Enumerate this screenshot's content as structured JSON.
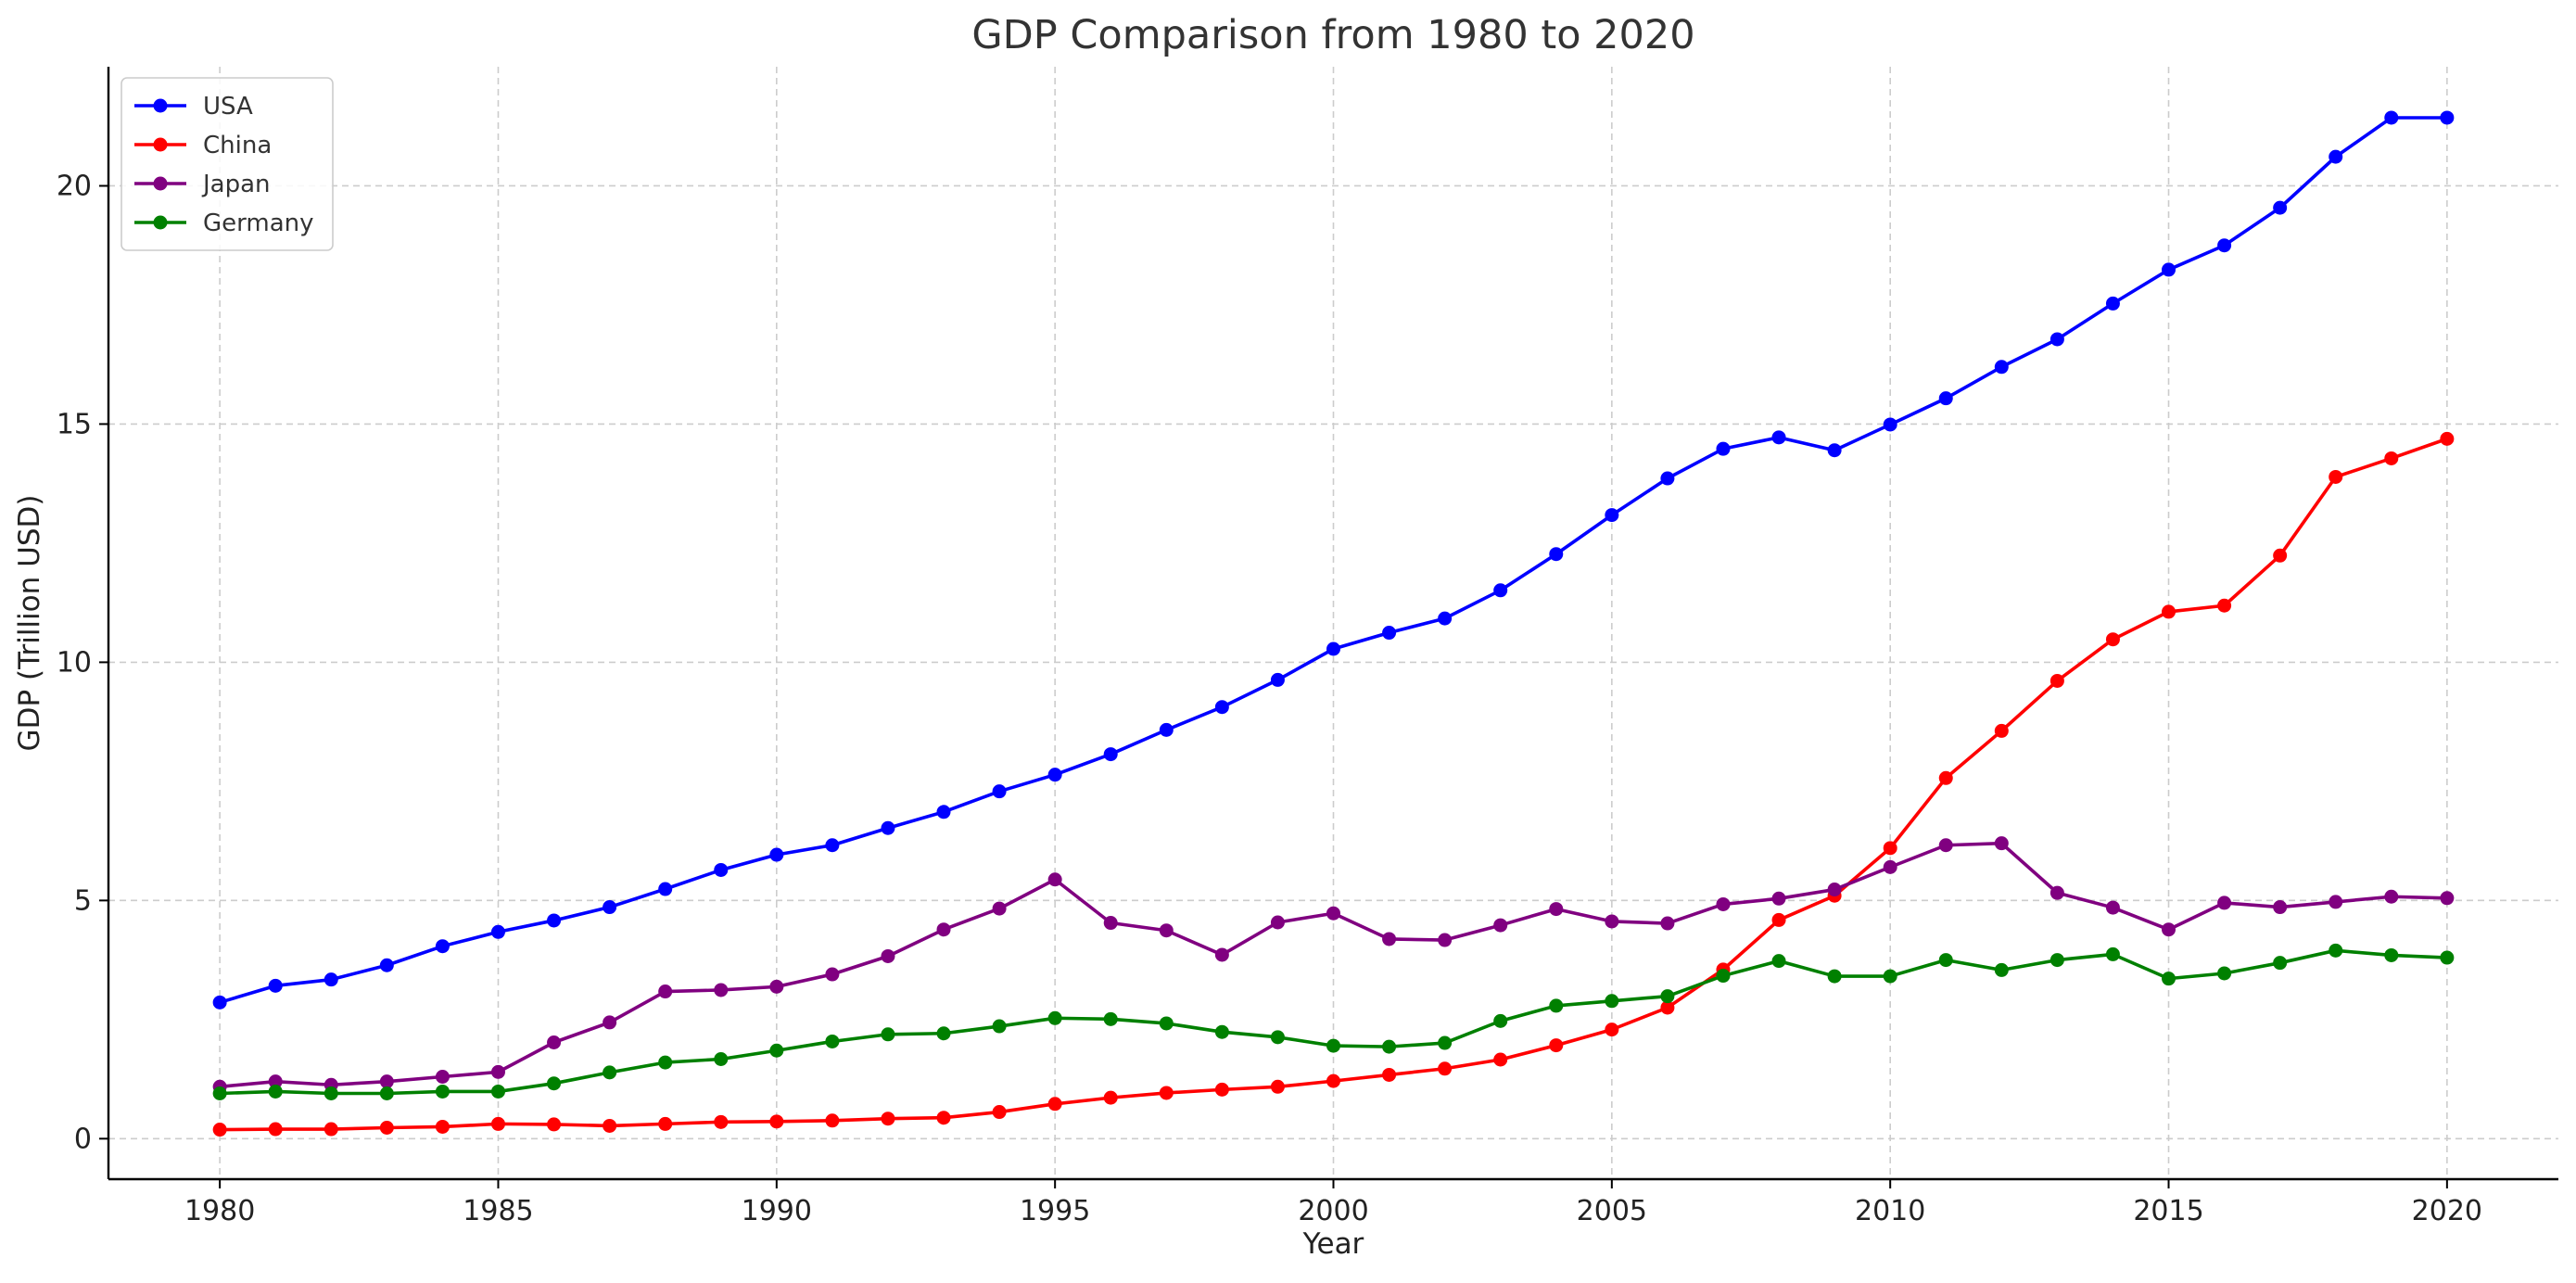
{
  "chart_data": {
    "type": "line",
    "title": "GDP Comparison from 1980 to 2020",
    "xlabel": "Year",
    "ylabel": "GDP (Trillion USD)",
    "xlim": [
      1978,
      2022
    ],
    "ylim": [
      -0.85,
      22.5
    ],
    "xticks": [
      1980,
      1985,
      1990,
      1995,
      2000,
      2005,
      2010,
      2015,
      2020
    ],
    "yticks": [
      0,
      5,
      10,
      15,
      20
    ],
    "grid": true,
    "legend_position": "upper-left",
    "x": [
      1980,
      1981,
      1982,
      1983,
      1984,
      1985,
      1986,
      1987,
      1988,
      1989,
      1990,
      1991,
      1992,
      1993,
      1994,
      1995,
      1996,
      1997,
      1998,
      1999,
      2000,
      2001,
      2002,
      2003,
      2004,
      2005,
      2006,
      2007,
      2008,
      2009,
      2010,
      2011,
      2012,
      2013,
      2014,
      2015,
      2016,
      2017,
      2018,
      2019,
      2020
    ],
    "series": [
      {
        "name": "USA",
        "color": "#0000ff",
        "values": [
          2.86,
          3.21,
          3.34,
          3.64,
          4.04,
          4.34,
          4.58,
          4.86,
          5.24,
          5.64,
          5.96,
          6.16,
          6.52,
          6.86,
          7.29,
          7.64,
          8.07,
          8.58,
          9.06,
          9.63,
          10.28,
          10.62,
          10.92,
          11.51,
          12.27,
          13.09,
          13.86,
          14.48,
          14.72,
          14.45,
          14.99,
          15.54,
          16.2,
          16.78,
          17.53,
          18.24,
          18.75,
          19.54,
          20.61,
          21.43,
          21.43
        ]
      },
      {
        "name": "China",
        "color": "#ff0000",
        "values": [
          0.19,
          0.2,
          0.2,
          0.23,
          0.25,
          0.31,
          0.3,
          0.27,
          0.31,
          0.35,
          0.36,
          0.38,
          0.42,
          0.44,
          0.56,
          0.73,
          0.86,
          0.96,
          1.03,
          1.09,
          1.21,
          1.34,
          1.47,
          1.66,
          1.96,
          2.29,
          2.75,
          3.55,
          4.59,
          5.1,
          6.1,
          7.57,
          8.56,
          9.61,
          10.48,
          11.06,
          11.19,
          12.24,
          13.89,
          14.28,
          14.69
        ]
      },
      {
        "name": "Japan",
        "color": "#800080",
        "values": [
          1.09,
          1.2,
          1.13,
          1.2,
          1.3,
          1.4,
          2.02,
          2.44,
          3.09,
          3.12,
          3.19,
          3.45,
          3.83,
          4.39,
          4.83,
          5.44,
          4.53,
          4.37,
          3.86,
          4.54,
          4.73,
          4.19,
          4.17,
          4.48,
          4.82,
          4.56,
          4.52,
          4.92,
          5.04,
          5.23,
          5.7,
          6.16,
          6.2,
          5.16,
          4.85,
          4.39,
          4.95,
          4.86,
          4.97,
          5.08,
          5.05
        ]
      },
      {
        "name": "Germany",
        "color": "#008000",
        "values": [
          0.95,
          0.99,
          0.95,
          0.95,
          0.99,
          0.99,
          1.16,
          1.39,
          1.6,
          1.67,
          1.85,
          2.04,
          2.19,
          2.21,
          2.36,
          2.53,
          2.51,
          2.42,
          2.24,
          2.13,
          1.95,
          1.93,
          2.01,
          2.47,
          2.79,
          2.89,
          2.99,
          3.42,
          3.73,
          3.41,
          3.41,
          3.75,
          3.54,
          3.75,
          3.87,
          3.36,
          3.47,
          3.69,
          3.95,
          3.85,
          3.8
        ]
      }
    ]
  }
}
